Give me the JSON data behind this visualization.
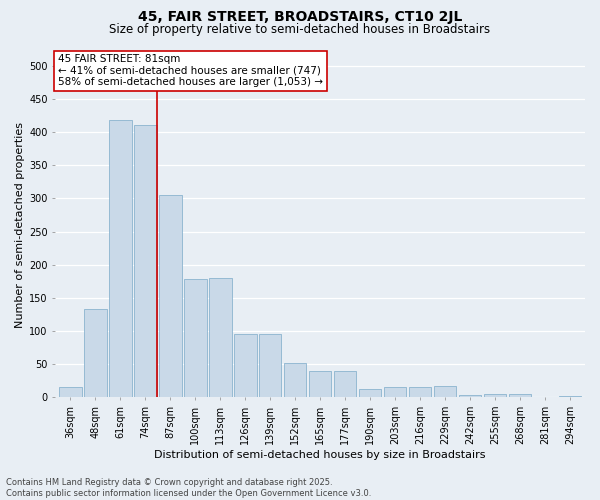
{
  "title": "45, FAIR STREET, BROADSTAIRS, CT10 2JL",
  "subtitle": "Size of property relative to semi-detached houses in Broadstairs",
  "xlabel": "Distribution of semi-detached houses by size in Broadstairs",
  "ylabel": "Number of semi-detached properties",
  "categories": [
    "36sqm",
    "48sqm",
    "61sqm",
    "74sqm",
    "87sqm",
    "100sqm",
    "113sqm",
    "126sqm",
    "139sqm",
    "152sqm",
    "165sqm",
    "177sqm",
    "190sqm",
    "203sqm",
    "216sqm",
    "229sqm",
    "242sqm",
    "255sqm",
    "268sqm",
    "281sqm",
    "294sqm"
  ],
  "values": [
    15,
    133,
    418,
    410,
    305,
    179,
    180,
    95,
    95,
    52,
    40,
    40,
    12,
    15,
    15,
    17,
    4,
    5,
    5,
    1,
    2
  ],
  "bar_color": "#c9d9e8",
  "bar_edge_color": "#7baac9",
  "red_line_index": 3,
  "red_line_color": "#cc0000",
  "annotation_title": "45 FAIR STREET: 81sqm",
  "annotation_line1": "← 41% of semi-detached houses are smaller (747)",
  "annotation_line2": "58% of semi-detached houses are larger (1,053) →",
  "annotation_box_color": "#ffffff",
  "annotation_box_edge_color": "#cc0000",
  "ylim": [
    0,
    520
  ],
  "yticks": [
    0,
    50,
    100,
    150,
    200,
    250,
    300,
    350,
    400,
    450,
    500
  ],
  "background_color": "#e8eef4",
  "grid_color": "#ffffff",
  "footer_line1": "Contains HM Land Registry data © Crown copyright and database right 2025.",
  "footer_line2": "Contains public sector information licensed under the Open Government Licence v3.0.",
  "title_fontsize": 10,
  "subtitle_fontsize": 8.5,
  "axis_label_fontsize": 8,
  "tick_fontsize": 7,
  "annotation_fontsize": 7.5,
  "footer_fontsize": 6
}
